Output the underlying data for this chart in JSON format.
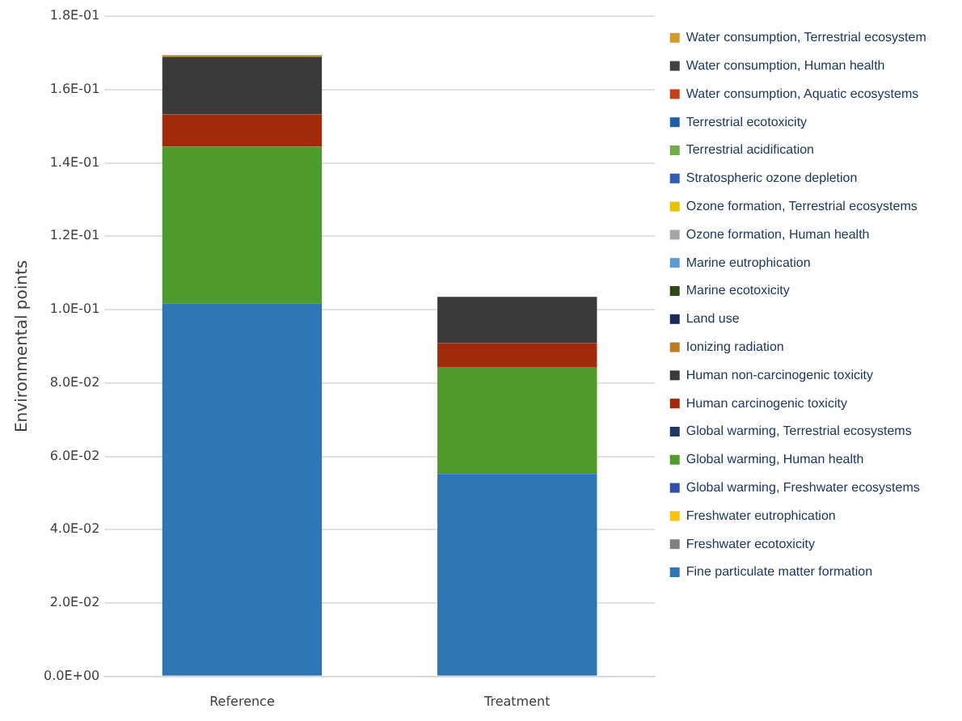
{
  "chart_data": {
    "type": "bar",
    "stacked": true,
    "ylabel": "Environmental points",
    "categories": [
      "Reference",
      "Treatment"
    ],
    "ylim": [
      0,
      0.18
    ],
    "yticks": [
      {
        "value": 0,
        "label": "0.0E+00"
      },
      {
        "value": 0.02,
        "label": "2.0E-02"
      },
      {
        "value": 0.04,
        "label": "4.0E-02"
      },
      {
        "value": 0.06,
        "label": "6.0E-02"
      },
      {
        "value": 0.08,
        "label": "8.0E-02"
      },
      {
        "value": 0.1,
        "label": "1.0E-01"
      },
      {
        "value": 0.12,
        "label": "1.2E-01"
      },
      {
        "value": 0.14,
        "label": "1.4E-01"
      },
      {
        "value": 0.16,
        "label": "1.6E-01"
      },
      {
        "value": 0.18,
        "label": "1.8E-01"
      }
    ],
    "grid": "y",
    "legend": "right",
    "series": [
      {
        "name": "Fine particulate matter formation",
        "color": "#2e75b6",
        "values": [
          0.1017,
          0.0552
        ]
      },
      {
        "name": "Freshwater ecotoxicity",
        "color": "#7f7f7f",
        "values": [
          0,
          0
        ]
      },
      {
        "name": "Freshwater eutrophication",
        "color": "#ffc000",
        "values": [
          0,
          0
        ]
      },
      {
        "name": "Global warming, Freshwater ecosystems",
        "color": "#2f4fa8",
        "values": [
          0,
          0
        ]
      },
      {
        "name": "Global warming, Human health",
        "color": "#4e9a2a",
        "values": [
          0.0427,
          0.029
        ]
      },
      {
        "name": "Global warming, Terrestrial ecosystems",
        "color": "#1f3864",
        "values": [
          0,
          0
        ]
      },
      {
        "name": "Human carcinogenic toxicity",
        "color": "#a12a0c",
        "values": [
          0.0088,
          0.0067
        ]
      },
      {
        "name": "Human non-carcinogenic toxicity",
        "color": "#3a3a3a",
        "values": [
          0.0157,
          0.0126
        ]
      },
      {
        "name": "Ionizing radiation",
        "color": "#c07a20",
        "values": [
          0,
          0
        ]
      },
      {
        "name": "Land use",
        "color": "#1a2a5a",
        "values": [
          0,
          0
        ]
      },
      {
        "name": "Marine ecotoxicity",
        "color": "#2c4a16",
        "values": [
          0,
          0
        ]
      },
      {
        "name": "Marine eutrophication",
        "color": "#5b9bd5",
        "values": [
          0,
          0
        ]
      },
      {
        "name": "Ozone formation, Human health",
        "color": "#a5a5a5",
        "values": [
          0,
          0
        ]
      },
      {
        "name": "Ozone formation, Terrestrial ecosystems",
        "color": "#e6c300",
        "values": [
          0,
          0
        ]
      },
      {
        "name": "Stratospheric ozone depletion",
        "color": "#2e5cb8",
        "values": [
          0,
          0
        ]
      },
      {
        "name": "Terrestrial acidification",
        "color": "#70ad47",
        "values": [
          0,
          0
        ]
      },
      {
        "name": "Terrestrial ecotoxicity",
        "color": "#1f5fa8",
        "values": [
          0,
          0
        ]
      },
      {
        "name": "Water consumption, Aquatic ecosystems",
        "color": "#c43e1c",
        "values": [
          0,
          0
        ]
      },
      {
        "name": "Water consumption, Human health",
        "color": "#404040",
        "values": [
          0,
          0
        ]
      },
      {
        "name": "Water consumption, Terrestrial ecosystem",
        "color": "#d39a2c",
        "values": [
          0.0005,
          0
        ]
      }
    ]
  }
}
